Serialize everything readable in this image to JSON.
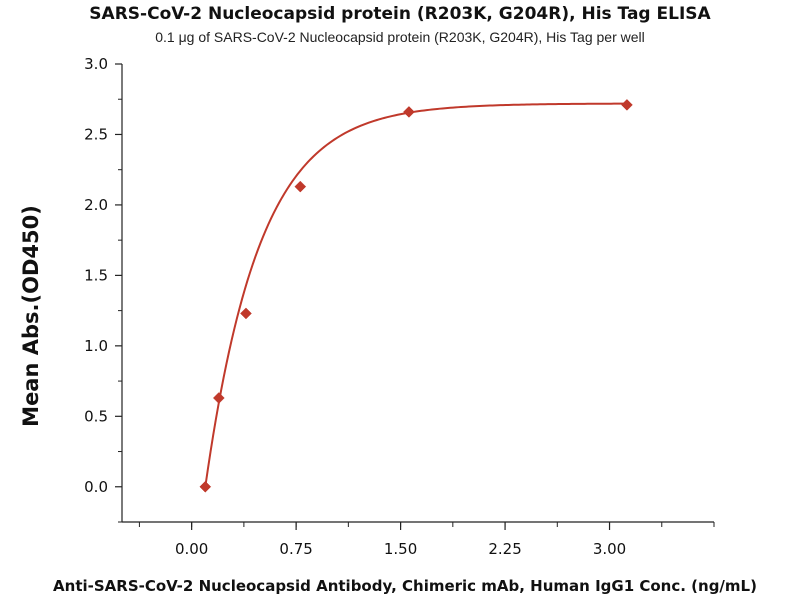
{
  "chart_data": {
    "type": "scatter",
    "title": "SARS-CoV-2 Nucleocapsid protein (R203K, G204R), His Tag ELISA",
    "subtitle": "0.1 μg of SARS-CoV-2 Nucleocapsid protein (R203K, G204R), His Tag per well",
    "xlabel": "Anti-SARS-CoV-2 Nucleocapsid Antibody, Chimeric mAb, Human IgG1 Conc. (ng/mL)",
    "ylabel": "Mean Abs.(OD450)",
    "xlim": [
      -0.5,
      3.75
    ],
    "ylim": [
      -0.25,
      3.0
    ],
    "xticks": [
      "0.00",
      "0.75",
      "1.50",
      "2.25",
      "3.00"
    ],
    "yticks": [
      "0.0",
      "0.5",
      "1.0",
      "1.5",
      "2.0",
      "2.5",
      "3.0"
    ],
    "marker": "diamond",
    "fit": "saturation curve",
    "color": "#c0392b",
    "grid": false,
    "series": [
      {
        "x": [
          0.098,
          0.195,
          0.39,
          0.78,
          1.56,
          3.125
        ],
        "y": [
          0.0,
          0.63,
          1.23,
          2.13,
          2.66,
          2.71
        ]
      }
    ]
  }
}
